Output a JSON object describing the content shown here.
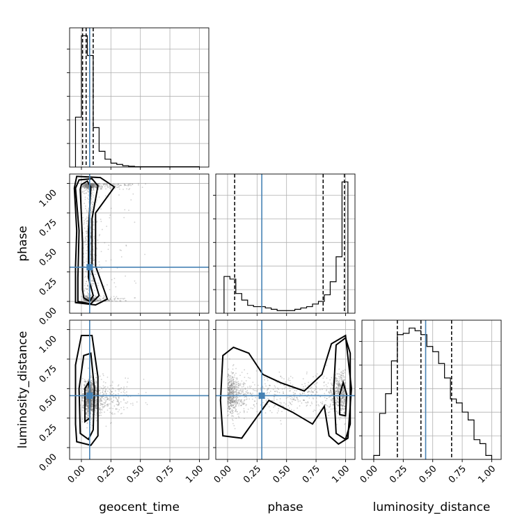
{
  "chart_data": {
    "type": "corner",
    "truth_color": "#4682b4",
    "parameters": [
      {
        "key": "geocent_time",
        "label": "geocent_time",
        "range": [
          -0.1,
          1.08
        ],
        "ticks": [
          0.0,
          0.25,
          0.5,
          0.75,
          1.0
        ],
        "tick_labels": [
          "0.00",
          "0.25",
          "0.50",
          "0.75",
          "1.00"
        ]
      },
      {
        "key": "phase",
        "label": "phase",
        "range": [
          -0.1,
          1.08
        ],
        "ticks": [
          0.0,
          0.25,
          0.5,
          0.75,
          1.0
        ],
        "tick_labels": [
          "0.00",
          "0.25",
          "0.50",
          "0.75",
          "1.00"
        ]
      },
      {
        "key": "luminosity_distance",
        "label": "luminosity_distance",
        "range": [
          -0.1,
          1.08
        ],
        "ticks": [
          0.0,
          0.25,
          0.5,
          0.75,
          1.0
        ],
        "tick_labels": [
          "0.00",
          "0.25",
          "0.50",
          "0.75",
          "1.00"
        ]
      }
    ],
    "truths": {
      "geocent_time": 0.07,
      "phase": 0.29,
      "luminosity_distance": 0.44
    },
    "histograms": {
      "geocent_time": {
        "edges": [
          -0.05,
          0.0,
          0.05,
          0.1,
          0.15,
          0.2,
          0.25,
          0.3,
          0.35,
          0.4,
          0.45,
          1.0
        ],
        "counts": [
          0.38,
          1.0,
          0.85,
          0.3,
          0.12,
          0.06,
          0.03,
          0.02,
          0.01,
          0.006,
          0.003
        ],
        "quantiles": [
          0.01,
          0.04,
          0.1
        ]
      },
      "phase": {
        "edges": [
          -0.03,
          0.02,
          0.07,
          0.12,
          0.17,
          0.22,
          0.27,
          0.32,
          0.37,
          0.42,
          0.47,
          0.52,
          0.57,
          0.62,
          0.67,
          0.72,
          0.77,
          0.82,
          0.87,
          0.92,
          0.97,
          1.02
        ],
        "counts": [
          0.28,
          0.26,
          0.15,
          0.1,
          0.06,
          0.05,
          0.05,
          0.04,
          0.03,
          0.02,
          0.02,
          0.02,
          0.03,
          0.04,
          0.05,
          0.07,
          0.09,
          0.14,
          0.24,
          0.43,
          1.0
        ],
        "quantiles": [
          0.06,
          0.81,
          0.99
        ]
      },
      "luminosity_distance": {
        "edges": [
          0.0,
          0.05,
          0.1,
          0.15,
          0.2,
          0.25,
          0.3,
          0.35,
          0.4,
          0.45,
          0.5,
          0.55,
          0.6,
          0.65,
          0.7,
          0.75,
          0.8,
          0.85,
          0.9,
          0.95,
          1.0
        ],
        "counts": [
          0.03,
          0.35,
          0.5,
          0.75,
          0.95,
          0.96,
          1.0,
          0.98,
          0.95,
          0.86,
          0.82,
          0.73,
          0.62,
          0.46,
          0.43,
          0.36,
          0.3,
          0.15,
          0.12,
          0.03
        ],
        "quantiles": [
          0.2,
          0.4,
          0.66
        ]
      }
    },
    "scatter_clouds": {
      "geocent_time|phase": {
        "x_center": 0.07,
        "x_spread": 0.08,
        "x_tail": 0.4,
        "y_modes": [
          0.0,
          1.0
        ],
        "y_uniform": true
      },
      "geocent_time|luminosity_distance": {
        "x_center": 0.07,
        "x_spread": 0.08,
        "x_tail": 0.4,
        "y_center": 0.42,
        "y_spread": 0.22
      },
      "phase|luminosity_distance": {
        "x_modes": [
          0.0,
          1.0
        ],
        "y_center": 0.45,
        "y_spread": 0.25
      }
    },
    "contours": {
      "geocent_time|phase": [
        [
          [
            0.02,
            0.03
          ],
          [
            0.07,
            0.0
          ],
          [
            0.1,
            0.05
          ],
          [
            0.06,
            0.2
          ],
          [
            0.06,
            0.6
          ],
          [
            0.08,
            0.97
          ],
          [
            0.05,
            1.02
          ],
          [
            0.0,
            0.99
          ],
          [
            -0.01,
            0.95
          ],
          [
            0.01,
            0.5
          ],
          [
            0.01,
            0.1
          ]
        ],
        [
          [
            -0.03,
            0.0
          ],
          [
            0.08,
            -0.02
          ],
          [
            0.15,
            0.05
          ],
          [
            0.09,
            0.25
          ],
          [
            0.09,
            0.7
          ],
          [
            0.14,
            0.98
          ],
          [
            0.09,
            1.04
          ],
          [
            -0.02,
            1.03
          ],
          [
            -0.05,
            0.96
          ],
          [
            -0.02,
            0.6
          ],
          [
            -0.03,
            0.2
          ]
        ],
        [
          [
            -0.05,
            -0.01
          ],
          [
            0.12,
            -0.03
          ],
          [
            0.22,
            0.02
          ],
          [
            0.12,
            0.3
          ],
          [
            0.12,
            0.75
          ],
          [
            0.28,
            0.97
          ],
          [
            0.16,
            1.05
          ],
          [
            -0.04,
            1.06
          ],
          [
            -0.06,
            0.96
          ],
          [
            -0.04,
            0.6
          ],
          [
            -0.05,
            0.3
          ]
        ]
      ],
      "geocent_time|luminosity_distance": [
        [
          [
            0.03,
            0.22
          ],
          [
            0.07,
            0.25
          ],
          [
            0.07,
            0.5
          ],
          [
            0.06,
            0.55
          ],
          [
            0.03,
            0.5
          ],
          [
            0.03,
            0.3
          ]
        ],
        [
          [
            -0.01,
            0.12
          ],
          [
            0.06,
            0.07
          ],
          [
            0.1,
            0.15
          ],
          [
            0.11,
            0.5
          ],
          [
            0.08,
            0.8
          ],
          [
            0.02,
            0.78
          ],
          [
            -0.02,
            0.5
          ]
        ],
        [
          [
            -0.04,
            0.05
          ],
          [
            0.08,
            0.02
          ],
          [
            0.14,
            0.1
          ],
          [
            0.14,
            0.6
          ],
          [
            0.09,
            0.95
          ],
          [
            0.0,
            0.95
          ],
          [
            -0.05,
            0.7
          ],
          [
            -0.05,
            0.2
          ]
        ]
      ],
      "phase|luminosity_distance": [
        [
          [
            0.95,
            0.28
          ],
          [
            1.0,
            0.27
          ],
          [
            1.01,
            0.45
          ],
          [
            0.98,
            0.55
          ],
          [
            0.95,
            0.45
          ]
        ],
        [
          [
            0.92,
            0.12
          ],
          [
            1.0,
            0.07
          ],
          [
            1.04,
            0.2
          ],
          [
            1.04,
            0.8
          ],
          [
            1.0,
            0.93
          ],
          [
            0.92,
            0.87
          ],
          [
            0.9,
            0.5
          ]
        ],
        [
          [
            -0.04,
            0.1
          ],
          [
            0.12,
            0.08
          ],
          [
            0.22,
            0.22
          ],
          [
            0.35,
            0.4
          ],
          [
            0.55,
            0.3
          ],
          [
            0.72,
            0.2
          ],
          [
            0.82,
            0.35
          ],
          [
            0.86,
            0.1
          ],
          [
            0.94,
            0.03
          ],
          [
            1.02,
            0.08
          ],
          [
            1.05,
            0.5
          ],
          [
            1.0,
            0.95
          ],
          [
            0.88,
            0.88
          ],
          [
            0.8,
            0.62
          ],
          [
            0.65,
            0.48
          ],
          [
            0.45,
            0.55
          ],
          [
            0.3,
            0.62
          ],
          [
            0.18,
            0.8
          ],
          [
            0.05,
            0.85
          ],
          [
            -0.04,
            0.78
          ],
          [
            -0.06,
            0.4
          ]
        ]
      ]
    }
  }
}
